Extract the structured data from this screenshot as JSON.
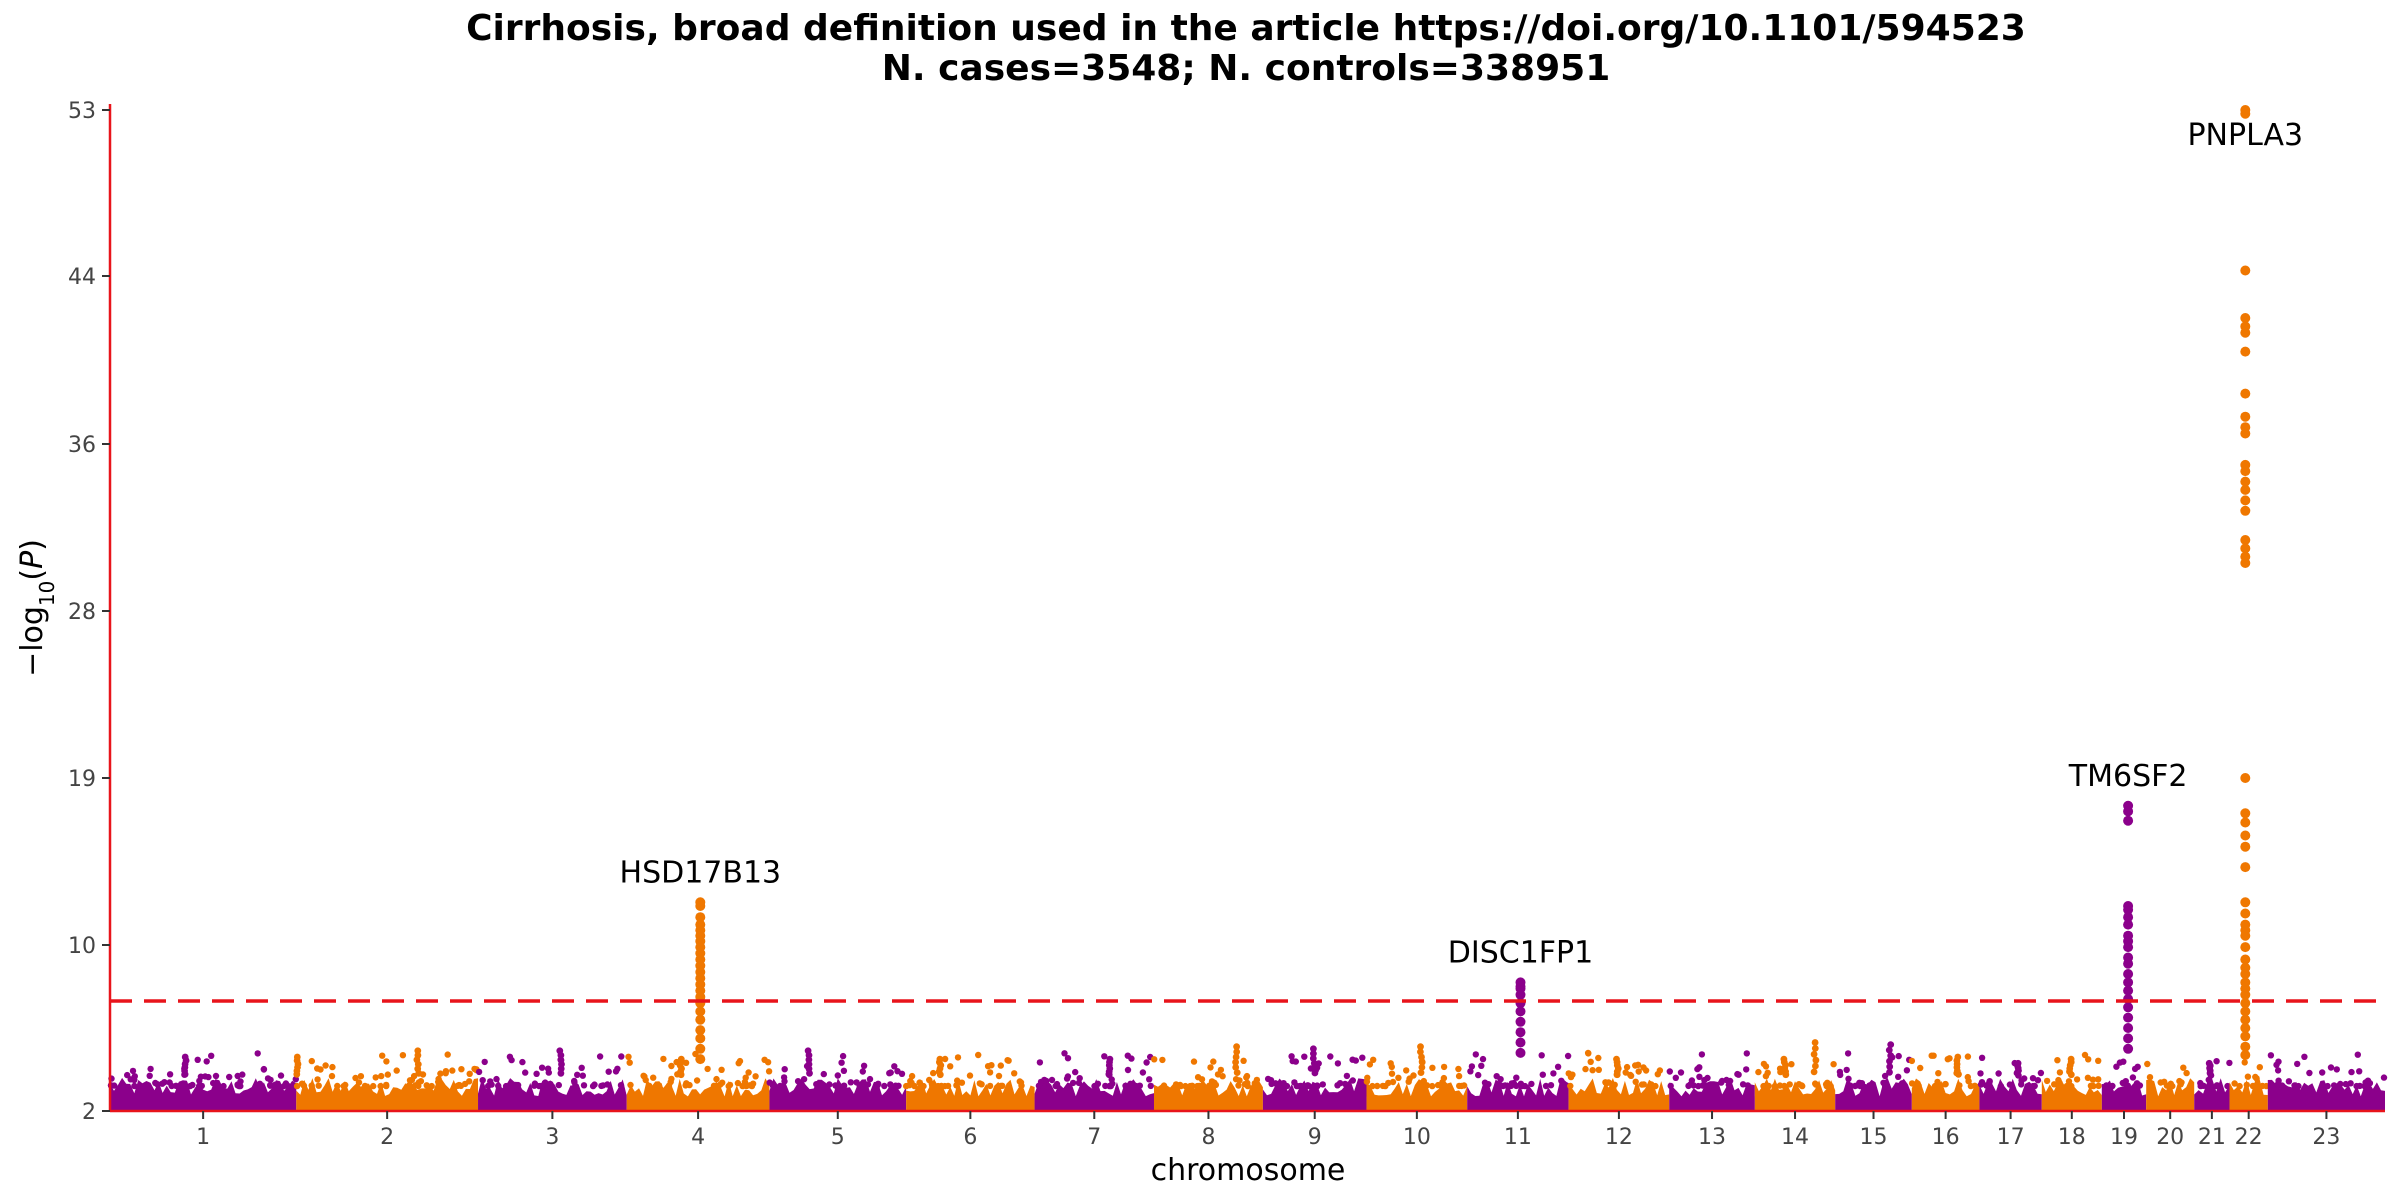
{
  "chart_data": {
    "type": "scatter",
    "title_line1": "Cirrhosis, broad definition used in the article https://doi.org/10.1101/594523",
    "title_line2": "N. cases=3548; N. controls=338951",
    "xlabel": "chromosome",
    "ylabel": "−log10(P)",
    "yticks": [
      2,
      10,
      19,
      28,
      36,
      44,
      53
    ],
    "ylim": [
      2,
      53
    ],
    "significance_threshold": 7.3,
    "colors": {
      "odd": "#8b008b",
      "even": "#ef7700",
      "threshold": "#e8141b",
      "axis": "#e8141b"
    },
    "chromosomes": [
      {
        "label": "1",
        "start": 0,
        "end": 248
      },
      {
        "label": "2",
        "start": 248,
        "end": 490
      },
      {
        "label": "3",
        "start": 490,
        "end": 688
      },
      {
        "label": "4",
        "start": 688,
        "end": 878
      },
      {
        "label": "5",
        "start": 878,
        "end": 1060
      },
      {
        "label": "6",
        "start": 1060,
        "end": 1231
      },
      {
        "label": "7",
        "start": 1231,
        "end": 1390
      },
      {
        "label": "8",
        "start": 1390,
        "end": 1535
      },
      {
        "label": "9",
        "start": 1535,
        "end": 1673
      },
      {
        "label": "10",
        "start": 1673,
        "end": 1807
      },
      {
        "label": "11",
        "start": 1807,
        "end": 1942
      },
      {
        "label": "12",
        "start": 1942,
        "end": 2076
      },
      {
        "label": "13",
        "start": 2076,
        "end": 2190
      },
      {
        "label": "14",
        "start": 2190,
        "end": 2297
      },
      {
        "label": "15",
        "start": 2297,
        "end": 2399
      },
      {
        "label": "16",
        "start": 2399,
        "end": 2489
      },
      {
        "label": "17",
        "start": 2489,
        "end": 2572
      },
      {
        "label": "18",
        "start": 2572,
        "end": 2652
      },
      {
        "label": "19",
        "start": 2652,
        "end": 2711
      },
      {
        "label": "20",
        "start": 2711,
        "end": 2775
      },
      {
        "label": "21",
        "start": 2775,
        "end": 2822
      },
      {
        "label": "22",
        "start": 2822,
        "end": 2873
      },
      {
        "label": "23",
        "start": 2873,
        "end": 3029
      }
    ],
    "background_peaks": [
      {
        "x": 100,
        "y": 4.6
      },
      {
        "x": 250,
        "y": 4.6
      },
      {
        "x": 410,
        "y": 4.9
      },
      {
        "x": 600,
        "y": 4.9
      },
      {
        "x": 760,
        "y": 4.5
      },
      {
        "x": 930,
        "y": 4.9
      },
      {
        "x": 1105,
        "y": 4.5
      },
      {
        "x": 1330,
        "y": 4.5
      },
      {
        "x": 1500,
        "y": 5.1
      },
      {
        "x": 1603,
        "y": 5.0
      },
      {
        "x": 1746,
        "y": 5.1
      },
      {
        "x": 2007,
        "y": 4.5
      },
      {
        "x": 2230,
        "y": 4.5
      },
      {
        "x": 2270,
        "y": 5.3
      },
      {
        "x": 2370,
        "y": 5.2
      },
      {
        "x": 2460,
        "y": 4.6
      },
      {
        "x": 2540,
        "y": 4.3
      },
      {
        "x": 2610,
        "y": 4.5
      },
      {
        "x": 2796,
        "y": 4.3
      }
    ],
    "hits": [
      {
        "gene": "HSD17B13",
        "chrom": "4",
        "x": 786,
        "top": 12.3,
        "y": [
          12.3,
          12.1,
          11.5,
          11.1,
          10.8,
          10.5,
          10.2,
          9.9,
          9.6,
          9.3,
          9.0,
          8.7,
          8.4,
          8.1,
          7.8,
          7.5,
          7.2,
          6.8,
          6.4,
          5.9,
          5.5,
          5.0,
          4.5
        ]
      },
      {
        "gene": "DISC1FP1",
        "chrom": "11",
        "x": 1878,
        "top": 8.2,
        "y": [
          8.2,
          8.0,
          7.9,
          7.6,
          7.2,
          6.8,
          6.3,
          5.8,
          5.3,
          4.8
        ]
      },
      {
        "gene": "TM6SF2",
        "chrom": "19",
        "x": 2687,
        "top": 17.5,
        "y": [
          17.5,
          17.2,
          16.7,
          12.1,
          11.9,
          11.5,
          11.1,
          10.5,
          10.2,
          9.9,
          9.4,
          9.1,
          8.6,
          8.2,
          7.8,
          7.4,
          7.0,
          6.5,
          6.0,
          5.5,
          5.0
        ]
      },
      {
        "gene": "PNPLA3",
        "chrom": "22",
        "x": 2843,
        "top": 53.0,
        "y": [
          53.0,
          52.8,
          44.3,
          42.0,
          41.6,
          41.3,
          40.4,
          38.4,
          37.3,
          36.8,
          36.5,
          35.0,
          34.7,
          34.2,
          33.8,
          33.3,
          32.8,
          31.4,
          31.0,
          30.6,
          30.3,
          19.0,
          17.1,
          16.6,
          15.9,
          15.3,
          14.2,
          12.3,
          11.7,
          11.1,
          10.8,
          10.5,
          9.9,
          9.3,
          8.9,
          8.6,
          8.2,
          7.9,
          7.6,
          7.2,
          6.8,
          6.4,
          6.0,
          5.6,
          5.1,
          4.7
        ]
      }
    ]
  }
}
